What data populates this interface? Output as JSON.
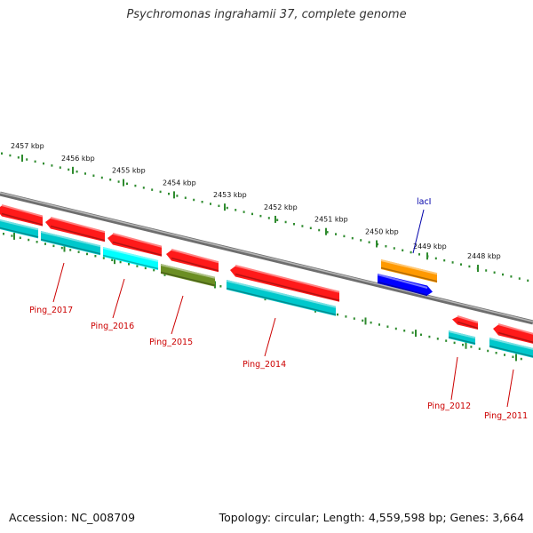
{
  "title": "Psychromonas ingrahamii 37, complete genome",
  "footer": {
    "accession": "Accession: NC_008709",
    "summary": "Topology: circular; Length: 4,559,598 bp; Genes: 3,664"
  },
  "colors": {
    "backbone": "#8a8a8a",
    "tick": "#2e8b2e",
    "gene_red": "#ff1a1a",
    "gene_cyan": "#00c8cc",
    "gene_cyan_bright": "#00ffff",
    "gene_olive": "#6b8e23",
    "gene_orange": "#ff9900",
    "gene_blue": "#0000ff",
    "label_red": "#cc0000",
    "label_blue": "#0000aa"
  },
  "outer_scale": {
    "labels": [
      "2457 kbp",
      "2456 kbp",
      "2455 kbp",
      "2454 kbp",
      "2453 kbp",
      "2452 kbp",
      "2451 kbp",
      "2450 kbp",
      "2449 kbp",
      "2448 kbp"
    ]
  },
  "genes": [
    {
      "name": "Ping_2017",
      "labeled": true
    },
    {
      "name": "Ping_2016",
      "labeled": true
    },
    {
      "name": "Ping_2015",
      "labeled": true
    },
    {
      "name": "Ping_2014",
      "labeled": true
    },
    {
      "name": "lacI",
      "labeled": true
    },
    {
      "name": "Ping_2012",
      "labeled": true
    },
    {
      "name": "Ping_2011",
      "labeled": true
    }
  ]
}
